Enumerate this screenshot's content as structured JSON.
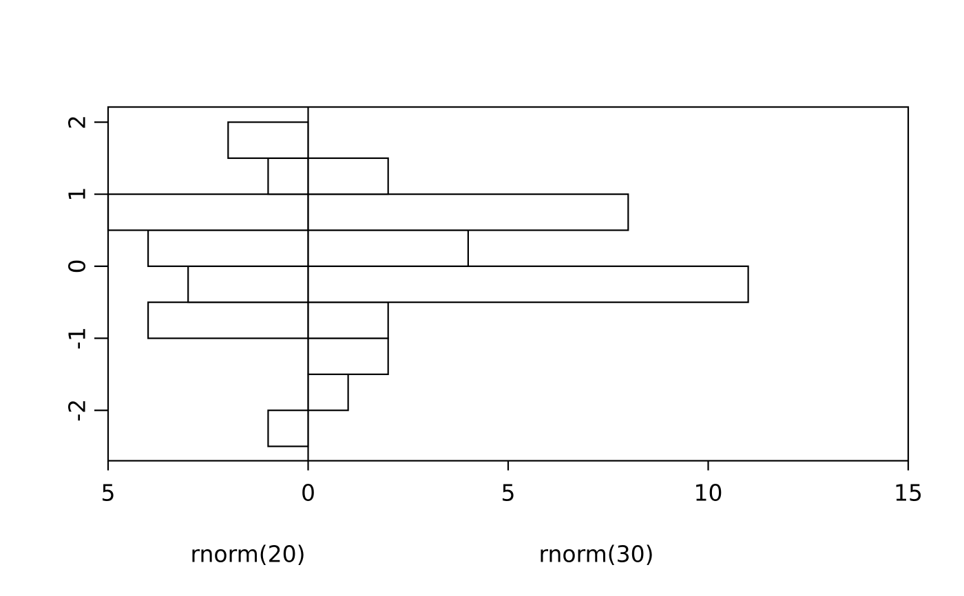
{
  "chart_data": {
    "type": "bar",
    "subtype": "back_to_back_horizontal_histogram",
    "title": "",
    "xlabel_left": "rnorm(20)",
    "xlabel_right": "rnorm(30)",
    "orientation": "horizontal",
    "bin_breaks": [
      -2.5,
      -2,
      -1.5,
      -1,
      -0.5,
      0,
      0.5,
      1,
      1.5,
      2
    ],
    "series": [
      {
        "name": "rnorm(20)",
        "side": "left",
        "counts": [
          1,
          0,
          0,
          4,
          3,
          4,
          5,
          1,
          2
        ]
      },
      {
        "name": "rnorm(30)",
        "side": "right",
        "counts": [
          0,
          1,
          2,
          2,
          11,
          4,
          8,
          2,
          0
        ]
      }
    ],
    "x_axis": {
      "tick_values": [
        -5,
        0,
        5,
        10,
        15
      ],
      "tick_labels": [
        "5",
        "0",
        "5",
        "10",
        "15"
      ],
      "xlim": [
        -5,
        15
      ]
    },
    "y_axis": {
      "tick_values": [
        2,
        1,
        0,
        -1,
        -2
      ],
      "tick_labels": [
        "2",
        "1",
        "0",
        "-1",
        "-2"
      ],
      "ylim": [
        -2.7,
        2.21
      ]
    },
    "grid": false,
    "legend": false,
    "colors": {
      "stroke": "#000000",
      "bar_fill": "#ffffff",
      "background": "#ffffff"
    }
  }
}
